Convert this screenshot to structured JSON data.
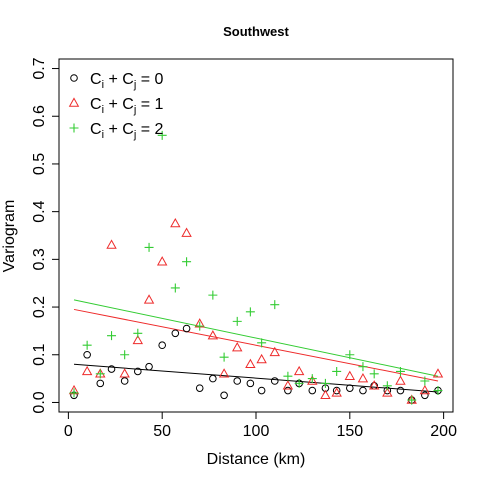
{
  "chart_data": {
    "type": "scatter",
    "title": "Southwest",
    "xlabel": "Distance (km)",
    "ylabel": "Variogram",
    "xlim": [
      -5,
      205
    ],
    "ylim": [
      -0.02,
      0.72
    ],
    "xticks": [
      0,
      50,
      100,
      150,
      200
    ],
    "yticks": [
      0.0,
      0.1,
      0.2,
      0.3,
      0.4,
      0.5,
      0.6,
      0.7
    ],
    "legend_position": "top-left",
    "grid": false,
    "series": [
      {
        "legend": {
          "prefix": "C",
          "sub1": "i",
          "mid": " + C",
          "sub2": "j",
          "suffix": " = 0"
        },
        "marker": "circle",
        "color": "#000000",
        "points": [
          [
            3,
            0.015
          ],
          [
            10,
            0.1
          ],
          [
            17,
            0.04
          ],
          [
            23,
            0.07
          ],
          [
            30,
            0.045
          ],
          [
            37,
            0.065
          ],
          [
            43,
            0.075
          ],
          [
            50,
            0.12
          ],
          [
            57,
            0.145
          ],
          [
            63,
            0.155
          ],
          [
            70,
            0.03
          ],
          [
            77,
            0.05
          ],
          [
            83,
            0.015
          ],
          [
            90,
            0.045
          ],
          [
            97,
            0.04
          ],
          [
            103,
            0.025
          ],
          [
            110,
            0.045
          ],
          [
            117,
            0.025
          ],
          [
            123,
            0.04
          ],
          [
            130,
            0.025
          ],
          [
            137,
            0.03
          ],
          [
            143,
            0.025
          ],
          [
            150,
            0.03
          ],
          [
            157,
            0.025
          ],
          [
            163,
            0.035
          ],
          [
            170,
            0.025
          ],
          [
            177,
            0.025
          ],
          [
            183,
            0.005
          ],
          [
            190,
            0.015
          ],
          [
            197,
            0.025
          ]
        ],
        "trend": [
          [
            3,
            0.08
          ],
          [
            197,
            0.022
          ]
        ]
      },
      {
        "legend": {
          "prefix": "C",
          "sub1": "i",
          "mid": " + C",
          "sub2": "j",
          "suffix": " = 1"
        },
        "marker": "triangle",
        "color": "#ee2b2b",
        "points": [
          [
            3,
            0.025
          ],
          [
            10,
            0.065
          ],
          [
            17,
            0.06
          ],
          [
            23,
            0.33
          ],
          [
            30,
            0.06
          ],
          [
            37,
            0.13
          ],
          [
            43,
            0.215
          ],
          [
            50,
            0.295
          ],
          [
            57,
            0.375
          ],
          [
            63,
            0.355
          ],
          [
            70,
            0.165
          ],
          [
            77,
            0.14
          ],
          [
            83,
            0.06
          ],
          [
            90,
            0.115
          ],
          [
            97,
            0.08
          ],
          [
            103,
            0.09
          ],
          [
            110,
            0.105
          ],
          [
            117,
            0.035
          ],
          [
            123,
            0.065
          ],
          [
            130,
            0.045
          ],
          [
            137,
            0.015
          ],
          [
            143,
            0.02
          ],
          [
            150,
            0.055
          ],
          [
            157,
            0.05
          ],
          [
            163,
            0.035
          ],
          [
            170,
            0.02
          ],
          [
            177,
            0.045
          ],
          [
            183,
            0.005
          ],
          [
            190,
            0.025
          ],
          [
            197,
            0.06
          ]
        ],
        "trend": [
          [
            3,
            0.195
          ],
          [
            197,
            0.045
          ]
        ]
      },
      {
        "legend": {
          "prefix": "C",
          "sub1": "i",
          "mid": " + C",
          "sub2": "j",
          "suffix": " = 2"
        },
        "marker": "plus",
        "color": "#33cc33",
        "points": [
          [
            3,
            0.02
          ],
          [
            10,
            0.12
          ],
          [
            17,
            0.06
          ],
          [
            23,
            0.14
          ],
          [
            30,
            0.1
          ],
          [
            37,
            0.145
          ],
          [
            43,
            0.325
          ],
          [
            50,
            0.56
          ],
          [
            57,
            0.24
          ],
          [
            63,
            0.295
          ],
          [
            70,
            0.16
          ],
          [
            77,
            0.225
          ],
          [
            83,
            0.095
          ],
          [
            90,
            0.17
          ],
          [
            97,
            0.19
          ],
          [
            103,
            0.125
          ],
          [
            110,
            0.205
          ],
          [
            117,
            0.055
          ],
          [
            123,
            0.04
          ],
          [
            130,
            0.05
          ],
          [
            137,
            0.04
          ],
          [
            143,
            0.065
          ],
          [
            150,
            0.1
          ],
          [
            157,
            0.075
          ],
          [
            163,
            0.06
          ],
          [
            170,
            0.035
          ],
          [
            177,
            0.065
          ],
          [
            183,
            0.005
          ],
          [
            190,
            0.045
          ],
          [
            197,
            0.025
          ]
        ],
        "trend": [
          [
            3,
            0.215
          ],
          [
            197,
            0.055
          ]
        ]
      }
    ]
  }
}
